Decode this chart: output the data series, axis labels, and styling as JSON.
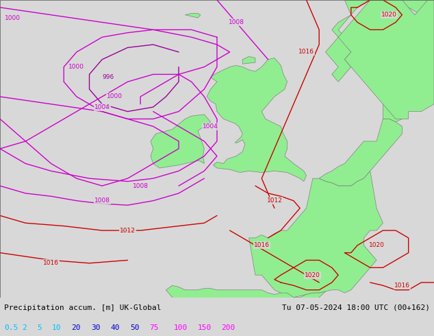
{
  "title_left": "Precipitation accum. [m] UK-Global",
  "title_right": "Tu 07-05-2024 18:00 UTC (00+162)",
  "legend_values": [
    "0.5",
    "2",
    "5",
    "10",
    "20",
    "30",
    "40",
    "50",
    "75",
    "100",
    "150",
    "200"
  ],
  "legend_colors": [
    "#00bfff",
    "#00bfff",
    "#00bfff",
    "#00bfff",
    "#0000cd",
    "#0000cd",
    "#0000cd",
    "#0000cd",
    "#ff00ff",
    "#ff00ff",
    "#ff00ff",
    "#ff00ff"
  ],
  "bg_color": "#d8d8d8",
  "land_color": "#90ee90",
  "coast_color": "#808080",
  "contour_magenta": "#cc00cc",
  "contour_darkmagenta": "#990099",
  "contour_red": "#cc0000",
  "fig_width": 6.34,
  "fig_height": 4.9,
  "lon_min": -22.0,
  "lon_max": 12.0,
  "lat_min": 43.0,
  "lat_max": 63.0
}
